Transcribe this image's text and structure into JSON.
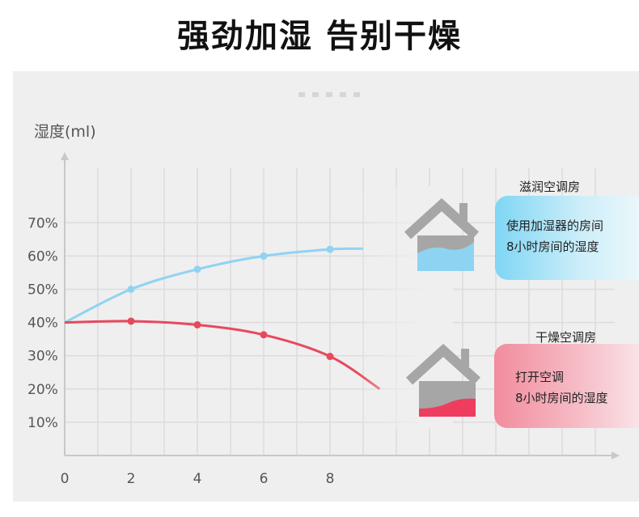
{
  "page": {
    "title": "强劲加湿 告别干燥"
  },
  "chart_data": {
    "type": "line",
    "ylabel": "湿度(ml)",
    "x_ticks": [
      0,
      2,
      4,
      6,
      8
    ],
    "y_ticks": [
      "10%",
      "20%",
      "30%",
      "40%",
      "50%",
      "60%",
      "70%"
    ],
    "xlim": [
      0,
      16
    ],
    "ylim": [
      0,
      90
    ],
    "grid": true,
    "series": [
      {
        "name": "滋润空调房",
        "color": "#8fd3f2",
        "points": [
          [
            0,
            40
          ],
          [
            2,
            50
          ],
          [
            4,
            56
          ],
          [
            6,
            60
          ],
          [
            8,
            62
          ],
          [
            9,
            62.2
          ]
        ],
        "markers": [
          [
            2,
            50
          ],
          [
            4,
            56
          ],
          [
            6,
            60
          ],
          [
            8,
            62
          ]
        ]
      },
      {
        "name": "干燥空调房",
        "color": "#e8485e",
        "points": [
          [
            0,
            40
          ],
          [
            2,
            40.4
          ],
          [
            4,
            39.3
          ],
          [
            6,
            36.3
          ],
          [
            8,
            29.8
          ],
          [
            9.5,
            20
          ]
        ],
        "markers": [
          [
            2,
            40.4
          ],
          [
            4,
            39.3
          ],
          [
            6,
            36.3
          ],
          [
            8,
            29.8
          ]
        ]
      }
    ]
  },
  "legend": {
    "moist": {
      "title": "滋润空调房",
      "line1": "使用加湿器的房间",
      "line2": "8小时房间的湿度"
    },
    "dry": {
      "title": "干燥空调房",
      "line1": "打开空调",
      "line2": "8小时房间的湿度"
    }
  },
  "colors": {
    "moist_water": "#8fd3f2",
    "dry_water": "#ee3d5e",
    "house": "#a6a6a6",
    "grid": "#dcdcdc",
    "axis": "#c8c8c8"
  },
  "icons": {
    "moist_house": "house-icon",
    "dry_house": "house-icon"
  }
}
